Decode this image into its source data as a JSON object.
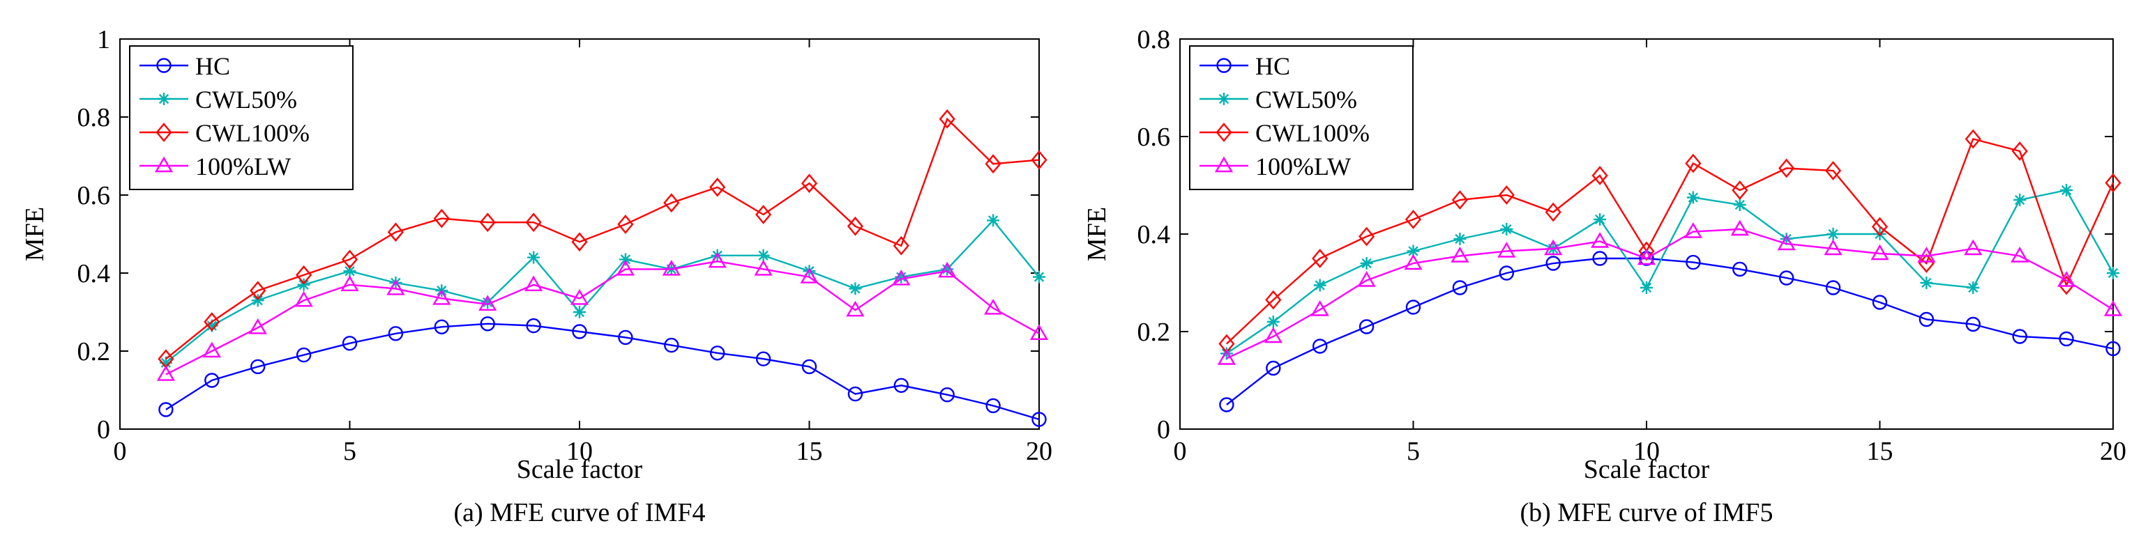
{
  "chart_data": [
    {
      "type": "line",
      "caption": "(a) MFE curve of IMF4",
      "xlabel": "Scale factor",
      "ylabel": "MFE",
      "xlim": [
        0,
        20
      ],
      "ylim": [
        0,
        1
      ],
      "xticks": [
        0,
        5,
        10,
        15,
        20
      ],
      "xtick_labels": [
        "0",
        "5",
        "10",
        "15",
        "20"
      ],
      "yticks": [
        0,
        0.2,
        0.4,
        0.6,
        0.8,
        1
      ],
      "ytick_labels": [
        "0",
        "0.2",
        "0.4",
        "0.6",
        "0.8",
        "1"
      ],
      "legend_position": "top-left",
      "x": [
        1,
        2,
        3,
        4,
        5,
        6,
        7,
        8,
        9,
        10,
        11,
        12,
        13,
        14,
        15,
        16,
        17,
        18,
        19,
        20
      ],
      "series": [
        {
          "name": "HC",
          "color": "#0000ff",
          "marker": "circle",
          "values": [
            0.05,
            0.125,
            0.16,
            0.19,
            0.22,
            0.245,
            0.262,
            0.27,
            0.265,
            0.25,
            0.235,
            0.215,
            0.195,
            0.18,
            0.16,
            0.09,
            0.112,
            0.088,
            0.06,
            0.025
          ]
        },
        {
          "name": "CWL50%",
          "color": "#00b3b3",
          "marker": "star",
          "values": [
            0.17,
            0.265,
            0.33,
            0.37,
            0.405,
            0.375,
            0.355,
            0.325,
            0.44,
            0.3,
            0.435,
            0.41,
            0.445,
            0.445,
            0.405,
            0.36,
            0.39,
            0.41,
            0.535,
            0.39
          ]
        },
        {
          "name": "CWL100%",
          "color": "#ff0000",
          "marker": "diamond",
          "values": [
            0.18,
            0.275,
            0.355,
            0.395,
            0.435,
            0.505,
            0.54,
            0.53,
            0.53,
            0.48,
            0.525,
            0.58,
            0.62,
            0.55,
            0.63,
            0.52,
            0.47,
            0.795,
            0.68,
            0.69
          ]
        },
        {
          "name": "100%LW",
          "color": "#ff00ff",
          "marker": "triangle",
          "values": [
            0.14,
            0.2,
            0.26,
            0.33,
            0.37,
            0.36,
            0.335,
            0.32,
            0.37,
            0.335,
            0.41,
            0.41,
            0.43,
            0.41,
            0.39,
            0.305,
            0.385,
            0.405,
            0.31,
            0.245
          ]
        }
      ]
    },
    {
      "type": "line",
      "caption": "(b) MFE curve of IMF5",
      "xlabel": "Scale factor",
      "ylabel": "MFE",
      "xlim": [
        0,
        20
      ],
      "ylim": [
        0,
        0.8
      ],
      "xticks": [
        0,
        5,
        10,
        15,
        20
      ],
      "xtick_labels": [
        "0",
        "5",
        "10",
        "15",
        "20"
      ],
      "yticks": [
        0,
        0.2,
        0.4,
        0.6,
        0.8
      ],
      "ytick_labels": [
        "0",
        "0.2",
        "0.4",
        "0.6",
        "0.8"
      ],
      "legend_position": "top-left",
      "x": [
        1,
        2,
        3,
        4,
        5,
        6,
        7,
        8,
        9,
        10,
        11,
        12,
        13,
        14,
        15,
        16,
        17,
        18,
        19,
        20
      ],
      "series": [
        {
          "name": "HC",
          "color": "#0000ff",
          "marker": "circle",
          "values": [
            0.05,
            0.125,
            0.17,
            0.21,
            0.25,
            0.29,
            0.32,
            0.34,
            0.35,
            0.35,
            0.342,
            0.328,
            0.31,
            0.29,
            0.26,
            0.225,
            0.215,
            0.19,
            0.185,
            0.165
          ]
        },
        {
          "name": "CWL50%",
          "color": "#00b3b3",
          "marker": "star",
          "values": [
            0.155,
            0.22,
            0.295,
            0.34,
            0.365,
            0.39,
            0.41,
            0.37,
            0.43,
            0.29,
            0.475,
            0.46,
            0.39,
            0.4,
            0.4,
            0.3,
            0.29,
            0.47,
            0.49,
            0.32
          ]
        },
        {
          "name": "CWL100%",
          "color": "#ff0000",
          "marker": "diamond",
          "values": [
            0.175,
            0.265,
            0.35,
            0.395,
            0.43,
            0.47,
            0.48,
            0.445,
            0.52,
            0.365,
            0.545,
            0.49,
            0.535,
            0.53,
            0.415,
            0.34,
            0.595,
            0.57,
            0.295,
            0.505
          ]
        },
        {
          "name": "100%LW",
          "color": "#ff00ff",
          "marker": "triangle",
          "values": [
            0.145,
            0.19,
            0.245,
            0.305,
            0.34,
            0.355,
            0.365,
            0.37,
            0.385,
            0.35,
            0.405,
            0.41,
            0.38,
            0.37,
            0.36,
            0.355,
            0.37,
            0.355,
            0.305,
            0.245
          ]
        }
      ]
    }
  ]
}
